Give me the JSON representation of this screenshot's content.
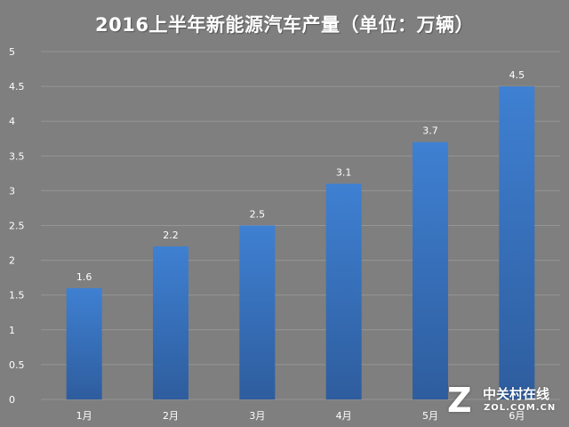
{
  "chart_data": {
    "type": "bar",
    "title": "2016上半年新能源汽车产量（单位：万辆）",
    "categories": [
      "1月",
      "2月",
      "3月",
      "4月",
      "5月",
      "6月"
    ],
    "values": [
      1.6,
      2.2,
      2.5,
      3.1,
      3.7,
      4.5
    ],
    "data_labels": [
      "1.6",
      "2.2",
      "2.5",
      "3.1",
      "3.7",
      "4.5"
    ],
    "y_ticks": [
      "0",
      "0.5",
      "1",
      "1.5",
      "2",
      "2.5",
      "3",
      "3.5",
      "4",
      "4.5",
      "5"
    ],
    "ylim": [
      0,
      5
    ],
    "y_step": 0.5,
    "grid": true,
    "legend": "none",
    "bar_color_top": "#3f80d2",
    "bar_color_bottom": "#2e5d9e",
    "background_color": "#7f7f7f"
  },
  "watermark": {
    "logo": "Z",
    "text_cn": "中关村在线",
    "text_en": "ZOL.COM.CN"
  }
}
